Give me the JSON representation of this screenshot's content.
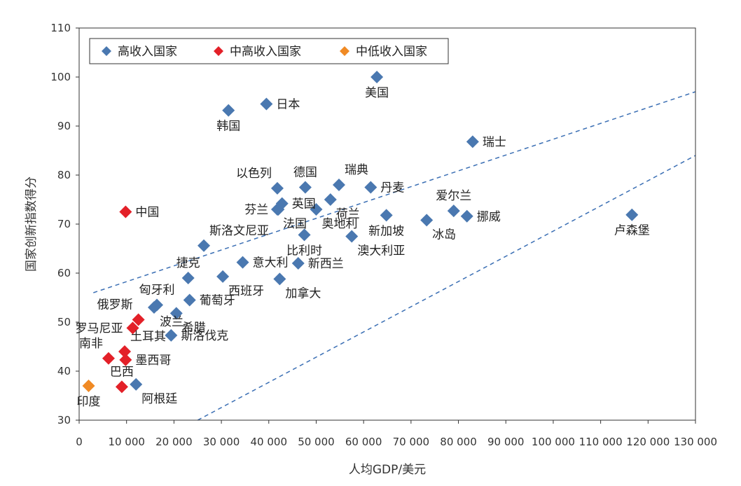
{
  "colors": {
    "high_income": "#4a78b0",
    "upper_middle_income": "#e32028",
    "lower_middle_income": "#f08a24",
    "guide_line": "#3b6fb4",
    "axis": "#333333"
  },
  "chart_data": {
    "type": "scatter",
    "xlabel": "人均GDP/美元",
    "ylabel": "国家创新指数得分",
    "xlim": [
      0,
      130000
    ],
    "ylim": [
      30,
      110
    ],
    "grid": false,
    "legend_placement": "top-left",
    "x_ticks": [
      {
        "value": 0,
        "label": "0"
      },
      {
        "value": 10000,
        "label": "10 000"
      },
      {
        "value": 20000,
        "label": "20 000"
      },
      {
        "value": 30000,
        "label": "30 000"
      },
      {
        "value": 40000,
        "label": "40 000"
      },
      {
        "value": 50000,
        "label": "50 000"
      },
      {
        "value": 60000,
        "label": "60 000"
      },
      {
        "value": 70000,
        "label": "70 000"
      },
      {
        "value": 80000,
        "label": "80 000"
      },
      {
        "value": 90000,
        "label": "90 000"
      },
      {
        "value": 100000,
        "label": "100 000"
      },
      {
        "value": 110000,
        "label": "110 000"
      },
      {
        "value": 120000,
        "label": "120 000"
      },
      {
        "value": 130000,
        "label": "130 000"
      }
    ],
    "y_ticks": [
      {
        "value": 30,
        "label": "30"
      },
      {
        "value": 40,
        "label": "40"
      },
      {
        "value": 50,
        "label": "50"
      },
      {
        "value": 60,
        "label": "60"
      },
      {
        "value": 70,
        "label": "70"
      },
      {
        "value": 80,
        "label": "80"
      },
      {
        "value": 90,
        "label": "90"
      },
      {
        "value": 100,
        "label": "100"
      },
      {
        "value": 110,
        "label": "110"
      }
    ],
    "reference_lines": [
      {
        "style": "dashed",
        "from": [
          3000,
          56
        ],
        "to": [
          130000,
          97
        ]
      },
      {
        "style": "dashed",
        "from": [
          25000,
          30
        ],
        "to": [
          130000,
          84
        ]
      }
    ],
    "series": [
      {
        "name": "高收入国家",
        "color_key": "high_income",
        "points": [
          {
            "label": "美国",
            "x": 62800,
            "y": 100,
            "label_pos": "below"
          },
          {
            "label": "日本",
            "x": 39500,
            "y": 94.5,
            "label_pos": "right"
          },
          {
            "label": "韩国",
            "x": 31500,
            "y": 93.2,
            "label_pos": "below"
          },
          {
            "label": "瑞士",
            "x": 83000,
            "y": 86.8,
            "label_pos": "right"
          },
          {
            "label": "以色列",
            "x": 41800,
            "y": 77.3,
            "label_pos": "above-left"
          },
          {
            "label": "德国",
            "x": 47700,
            "y": 77.5,
            "label_pos": "above"
          },
          {
            "label": "瑞典",
            "x": 54800,
            "y": 78,
            "label_pos": "above-right"
          },
          {
            "label": "丹麦",
            "x": 61500,
            "y": 77.5,
            "label_pos": "right"
          },
          {
            "label": "芬兰",
            "x": 42000,
            "y": 73,
            "label_pos": "left"
          },
          {
            "label": "英国",
            "x": 42800,
            "y": 74.2,
            "label_pos": "right"
          },
          {
            "label": "法国",
            "x": 41800,
            "y": 73,
            "label_pos": "below-right"
          },
          {
            "label": "荷兰",
            "x": 53000,
            "y": 75,
            "label_pos": "below-right"
          },
          {
            "label": "奥地利",
            "x": 50000,
            "y": 73,
            "label_pos": "below-right"
          },
          {
            "label": "比利时",
            "x": 47500,
            "y": 67.8,
            "label_pos": "below"
          },
          {
            "label": "新加坡",
            "x": 64800,
            "y": 71.8,
            "label_pos": "below"
          },
          {
            "label": "冰岛",
            "x": 73300,
            "y": 70.8,
            "label_pos": "below-right"
          },
          {
            "label": "爱尔兰",
            "x": 79000,
            "y": 72.7,
            "label_pos": "above"
          },
          {
            "label": "挪威",
            "x": 81800,
            "y": 71.6,
            "label_pos": "right"
          },
          {
            "label": "卢森堡",
            "x": 116600,
            "y": 71.9,
            "label_pos": "below"
          },
          {
            "label": "澳大利亚",
            "x": 57500,
            "y": 67.5,
            "label_pos": "below-right"
          },
          {
            "label": "斯洛文尼亚",
            "x": 26300,
            "y": 65.6,
            "label_pos": "above-right"
          },
          {
            "label": "意大利",
            "x": 34500,
            "y": 62.2,
            "label_pos": "right"
          },
          {
            "label": "新西兰",
            "x": 46200,
            "y": 62,
            "label_pos": "right"
          },
          {
            "label": "捷克",
            "x": 23000,
            "y": 59,
            "label_pos": "above"
          },
          {
            "label": "西班牙",
            "x": 30300,
            "y": 59.3,
            "label_pos": "below-right"
          },
          {
            "label": "加拿大",
            "x": 42300,
            "y": 58.8,
            "label_pos": "below-right"
          },
          {
            "label": "匈牙利",
            "x": 16400,
            "y": 53.5,
            "label_pos": "above"
          },
          {
            "label": "葡萄牙",
            "x": 23300,
            "y": 54.5,
            "label_pos": "right"
          },
          {
            "label": "波兰",
            "x": 15800,
            "y": 53,
            "label_pos": "below-right"
          },
          {
            "label": "希腊",
            "x": 20500,
            "y": 51.8,
            "label_pos": "below-right"
          },
          {
            "label": "斯洛伐克",
            "x": 19400,
            "y": 47.3,
            "label_pos": "right"
          },
          {
            "label": "阿根廷",
            "x": 12000,
            "y": 37.3,
            "label_pos": "below-right"
          }
        ]
      },
      {
        "name": "中高收入国家",
        "color_key": "upper_middle_income",
        "points": [
          {
            "label": "中国",
            "x": 9800,
            "y": 72.5,
            "label_pos": "right"
          },
          {
            "label": "俄罗斯",
            "x": 12500,
            "y": 50.5,
            "label_pos": "above-left"
          },
          {
            "label": "罗马尼亚",
            "x": 11300,
            "y": 48.8,
            "label_pos": "left"
          },
          {
            "label": "土耳其",
            "x": 9600,
            "y": 44,
            "label_pos": "above-right"
          },
          {
            "label": "墨西哥",
            "x": 9800,
            "y": 42.3,
            "label_pos": "right"
          },
          {
            "label": "南非",
            "x": 6200,
            "y": 42.6,
            "label_pos": "above-left"
          },
          {
            "label": "巴西",
            "x": 9000,
            "y": 36.8,
            "label_pos": "above"
          }
        ]
      },
      {
        "name": "中低收入国家",
        "color_key": "lower_middle_income",
        "points": [
          {
            "label": "印度",
            "x": 2000,
            "y": 37,
            "label_pos": "below"
          }
        ]
      }
    ]
  }
}
